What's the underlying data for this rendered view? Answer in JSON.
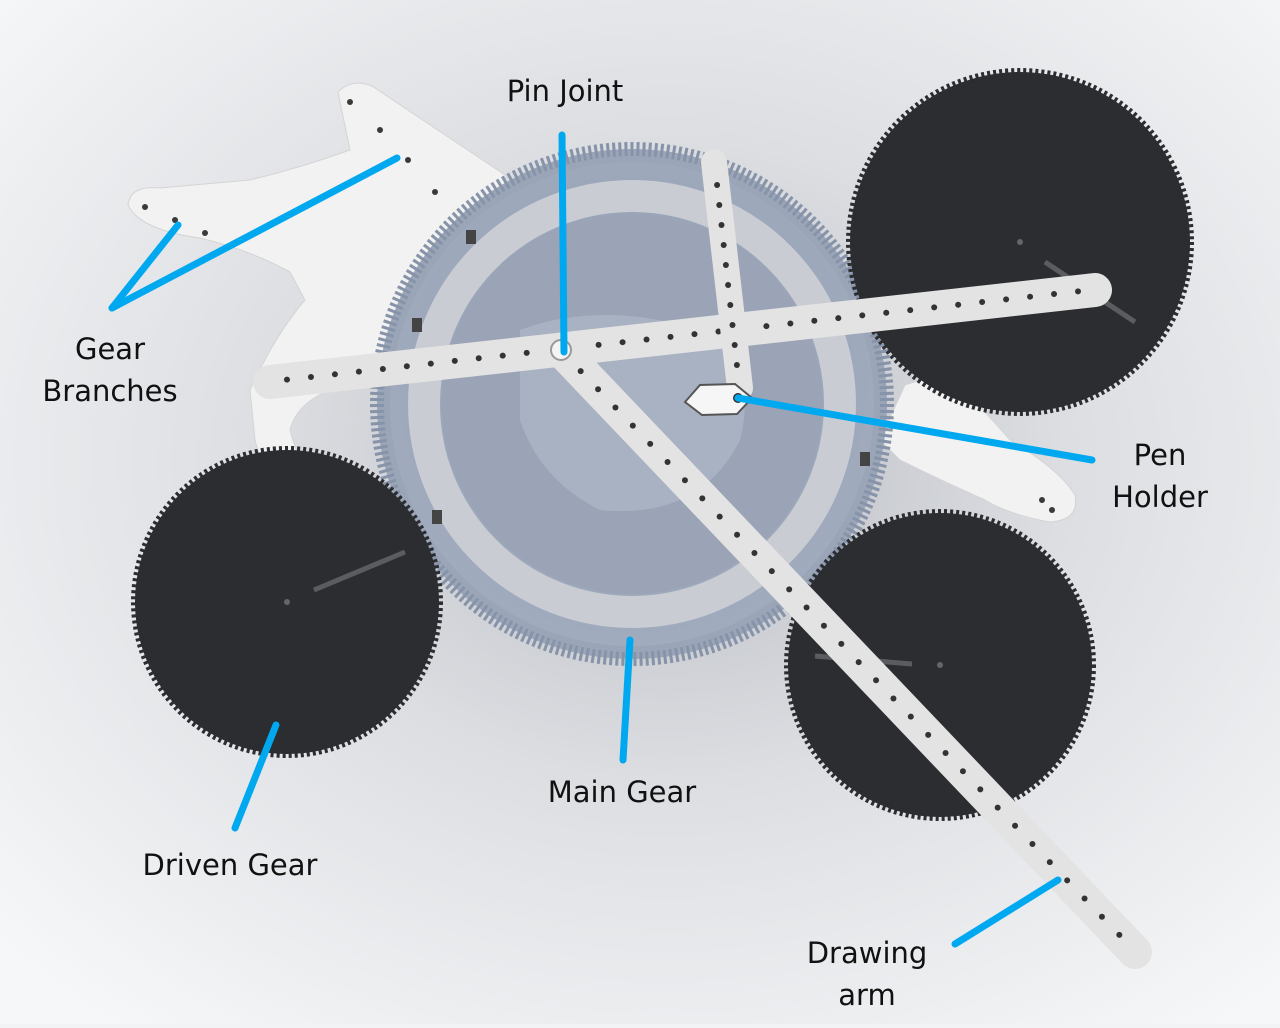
{
  "diagram": {
    "callout_color": "#00a8f0",
    "gear_dark_color": "#2b2d31",
    "main_gear_color": "#97a2b6",
    "arm_color": "#e3e3e3",
    "labels": {
      "pin_joint": "Pin Joint",
      "gear_branches_1": "Gear",
      "gear_branches_2": "Branches",
      "pen_holder_1": "Pen",
      "pen_holder_2": "Holder",
      "main_gear": "Main Gear",
      "driven_gear": "Driven Gear",
      "drawing_arm_1": "Drawing",
      "drawing_arm_2": "arm"
    }
  }
}
